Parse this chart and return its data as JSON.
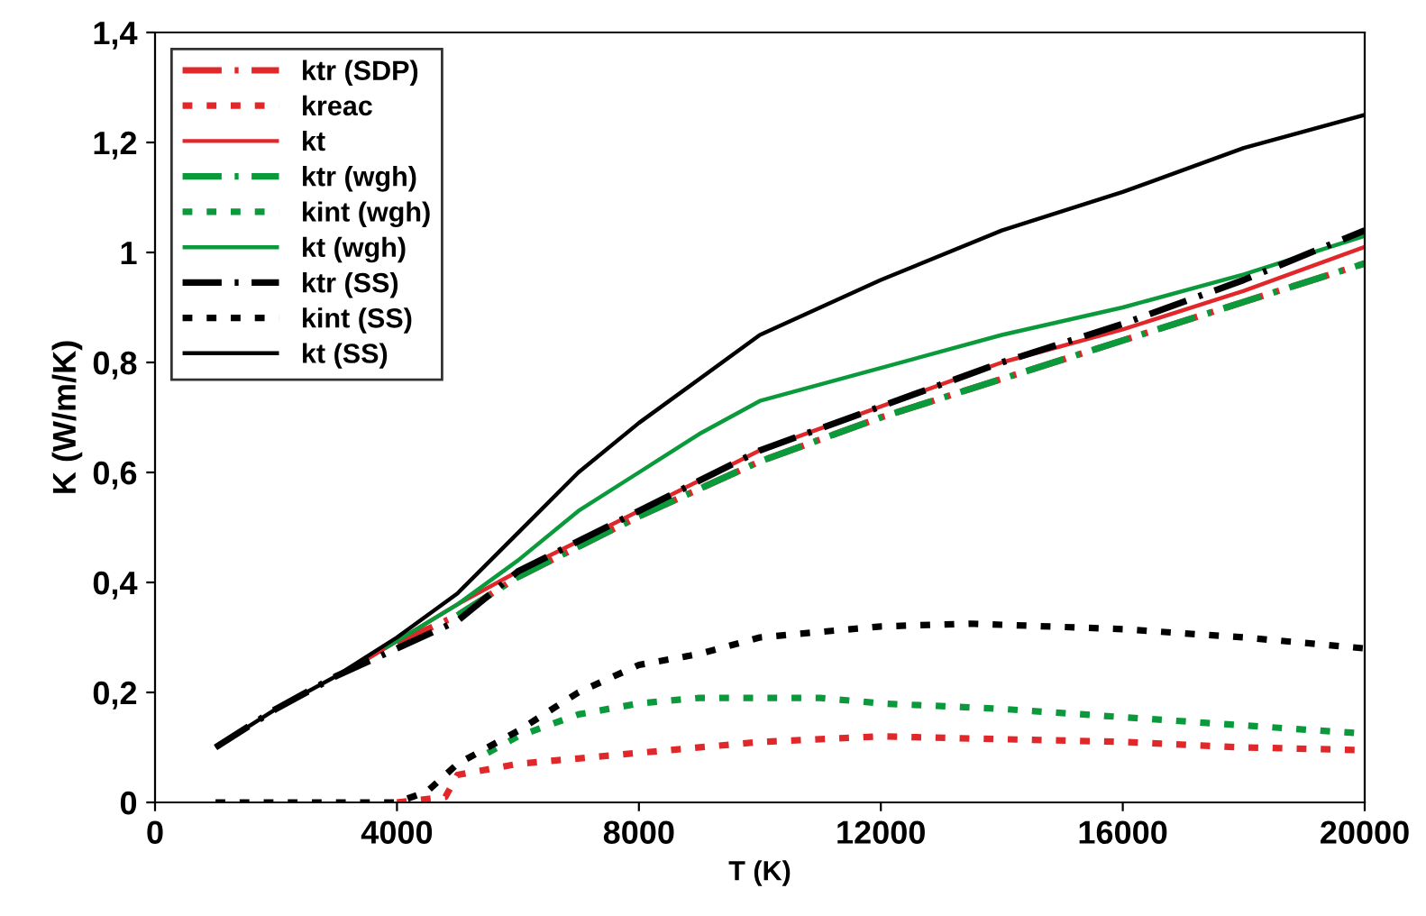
{
  "chart_data": {
    "type": "line",
    "xlabel": "T (K)",
    "ylabel": "K (W/m/K)",
    "xlim": [
      0,
      20000
    ],
    "xticks": [
      0,
      4000,
      8000,
      12000,
      16000,
      20000
    ],
    "ylim": [
      0,
      1.4
    ],
    "yticks": [
      0,
      {
        "value": 0.2,
        "label": "0,2"
      },
      {
        "value": 0.4,
        "label": "0,4"
      },
      {
        "value": 0.6,
        "label": "0,6"
      },
      {
        "value": 0.8,
        "label": "0,8"
      },
      1,
      {
        "value": 1.2,
        "label": "1,2"
      },
      {
        "value": 1.4,
        "label": "1,4"
      }
    ],
    "grid": false,
    "legend": "top left",
    "marker": "none",
    "series": [
      {
        "name": "ktr (SDP)",
        "color": "#e0272a",
        "line_style": "dashed",
        "x": [
          4000,
          5000,
          6000,
          8000,
          10000,
          12000,
          14000,
          16000,
          18000,
          20000
        ],
        "values": [
          0.29,
          0.34,
          0.41,
          0.52,
          0.62,
          0.7,
          0.77,
          0.84,
          0.91,
          0.98
        ]
      },
      {
        "name": "kreac",
        "color": "#e0272a",
        "line_style": "dotted",
        "x": [
          4000,
          4800,
          5000,
          6000,
          8000,
          10000,
          12000,
          14000,
          16000,
          18000,
          20000
        ],
        "values": [
          0,
          0.01,
          0.05,
          0.07,
          0.09,
          0.11,
          0.12,
          0.115,
          0.11,
          0.1,
          0.095
        ]
      },
      {
        "name": "kt",
        "color": "#e0272a",
        "line_style": "solid",
        "x": [
          3500,
          5000,
          6000,
          8000,
          10000,
          12000,
          14000,
          16000,
          18000,
          20000
        ],
        "values": [
          0.26,
          0.36,
          0.42,
          0.53,
          0.64,
          0.72,
          0.8,
          0.86,
          0.93,
          1.01
        ]
      },
      {
        "name": "ktr (wgh)",
        "color": "#0a9a3c",
        "line_style": "dashed",
        "x": [
          5000,
          6000,
          8000,
          10000,
          12000,
          14000,
          16000,
          18000,
          20000
        ],
        "values": [
          0.34,
          0.41,
          0.52,
          0.62,
          0.7,
          0.77,
          0.84,
          0.91,
          0.98
        ]
      },
      {
        "name": "kint (wgh)",
        "color": "#0a9a3c",
        "line_style": "dotted",
        "x": [
          5500,
          6000,
          7000,
          8000,
          9000,
          10000,
          11000,
          12000,
          14000,
          16000,
          18000,
          20000
        ],
        "values": [
          0.09,
          0.12,
          0.16,
          0.18,
          0.19,
          0.19,
          0.19,
          0.18,
          0.17,
          0.155,
          0.14,
          0.125
        ]
      },
      {
        "name": "kt (wgh)",
        "color": "#0a9a3c",
        "line_style": "solid",
        "x": [
          3800,
          5000,
          6000,
          7000,
          8000,
          9000,
          10000,
          12000,
          14000,
          16000,
          18000,
          20000
        ],
        "values": [
          0.28,
          0.36,
          0.44,
          0.53,
          0.6,
          0.67,
          0.73,
          0.79,
          0.85,
          0.9,
          0.96,
          1.03
        ]
      },
      {
        "name": "ktr (SS)",
        "color": "#000000",
        "line_style": "dashed",
        "x": [
          1000,
          2000,
          3000,
          4000,
          5000,
          6000,
          8000,
          10000,
          12000,
          14000,
          16000,
          18000,
          20000
        ],
        "values": [
          0.1,
          0.17,
          0.23,
          0.28,
          0.33,
          0.42,
          0.53,
          0.64,
          0.72,
          0.8,
          0.87,
          0.95,
          1.04
        ]
      },
      {
        "name": "kint (SS)",
        "color": "#000000",
        "line_style": "dotted",
        "x": [
          1000,
          2000,
          3000,
          4000,
          4500,
          5000,
          6000,
          7000,
          8000,
          9000,
          10000,
          12000,
          13500,
          16000,
          18000,
          20000
        ],
        "values": [
          0,
          0,
          0,
          0,
          0.02,
          0.07,
          0.13,
          0.2,
          0.25,
          0.27,
          0.3,
          0.32,
          0.325,
          0.315,
          0.3,
          0.28
        ]
      },
      {
        "name": "kt (SS)",
        "color": "#000000",
        "line_style": "solid",
        "x": [
          1000,
          2000,
          3000,
          4000,
          5000,
          6000,
          7000,
          8000,
          10000,
          12000,
          14000,
          16000,
          18000,
          20000
        ],
        "values": [
          0.1,
          0.17,
          0.23,
          0.3,
          0.38,
          0.49,
          0.6,
          0.69,
          0.85,
          0.95,
          1.04,
          1.11,
          1.19,
          1.25
        ]
      }
    ]
  }
}
